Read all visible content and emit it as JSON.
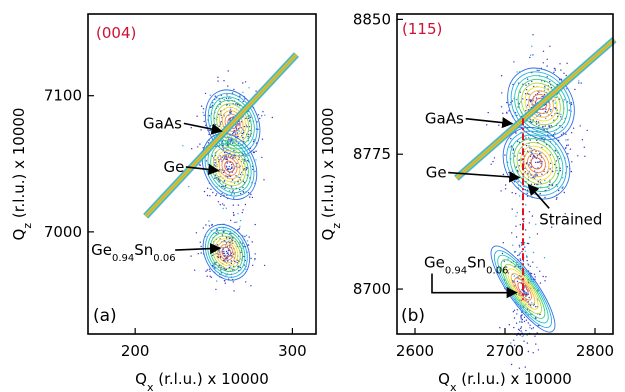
{
  "chart_data": [
    {
      "type": "heatmap",
      "panel_label": "(a)",
      "reflection": "(004)",
      "xlabel": {
        "main": "Q",
        "sub": "x",
        "rest": " (r.l.u.) x 10000"
      },
      "ylabel": {
        "main": "Q",
        "sub": "z",
        "rest": " (r.l.u.) x 10000"
      },
      "xlim": [
        170,
        315
      ],
      "ylim": [
        6925,
        7160
      ],
      "x_ticks": [
        200,
        300
      ],
      "y_ticks": [
        7000,
        7100
      ],
      "x_tick_labels": [
        "200",
        "300"
      ],
      "y_tick_labels": [
        "7000",
        "7100"
      ],
      "peaks": [
        {
          "name": "GaAs",
          "qx": 262,
          "qz": 7080
        },
        {
          "name": "Ge",
          "qx": 260,
          "qz": 7048
        },
        {
          "name": "Ge0.94Sn0.06",
          "qx": 258,
          "qz": 6985
        }
      ],
      "annotations": [
        {
          "text": "GaAs",
          "text_at": [
            205,
            7076
          ],
          "arrow_to": [
            255,
            7074
          ]
        },
        {
          "text": "Ge",
          "text_at": [
            218,
            7044
          ],
          "arrow_to": [
            253,
            7045
          ]
        },
        {
          "main": "Ge",
          "sub1": "0.94",
          "mid": "Sn",
          "sub2": "0.06",
          "text_at": [
            172,
            6983
          ],
          "arrow_to": [
            254,
            6988
          ]
        }
      ],
      "colors": {
        "reflection_label": "#cc1133"
      }
    },
    {
      "type": "heatmap",
      "panel_label": "(b)",
      "reflection": "(115)",
      "xlabel": {
        "main": "Q",
        "sub": "x",
        "rest": " (r.l.u.) x 10000"
      },
      "ylabel": {
        "main": "Q",
        "sub": "z",
        "rest": " (r.l.u.) x 10000"
      },
      "xlim": [
        2580,
        2820
      ],
      "ylim": [
        8675,
        8853
      ],
      "x_ticks": [
        2600,
        2700,
        2800
      ],
      "y_ticks": [
        8700,
        8775,
        8850
      ],
      "x_tick_labels": [
        "2600",
        "2700",
        "2800"
      ],
      "y_tick_labels": [
        "8700",
        "8775",
        "8850"
      ],
      "peaks": [
        {
          "name": "GaAs",
          "qx": 2740,
          "qz": 8803
        },
        {
          "name": "Ge",
          "qx": 2735,
          "qz": 8770
        },
        {
          "name": "Ge0.94Sn0.06",
          "qx": 2720,
          "qz": 8700
        }
      ],
      "vertical_marker": {
        "qx": 2720,
        "qz_from": 8694,
        "qz_to": 8795,
        "color": "#e0141e",
        "style": "dash-dot"
      },
      "annotations": [
        {
          "text": "GaAs",
          "text_at": [
            2611,
            8792
          ],
          "arrow_to": [
            2708,
            8792
          ]
        },
        {
          "text": "Ge",
          "text_at": [
            2612,
            8762
          ],
          "arrow_to": [
            2716,
            8762
          ]
        },
        {
          "text": "Strained",
          "text_at": [
            2738,
            8736
          ],
          "arrow_to": [
            2726,
            8758
          ]
        },
        {
          "main": "Ge",
          "sub1": "0.94",
          "mid": "Sn",
          "sub2": "0.06",
          "text_at": [
            2610,
            8712
          ],
          "bracket_to": [
            2713,
            8698
          ]
        }
      ],
      "colors": {
        "reflection_label": "#cc1133",
        "marker": "#e0141e"
      }
    }
  ]
}
